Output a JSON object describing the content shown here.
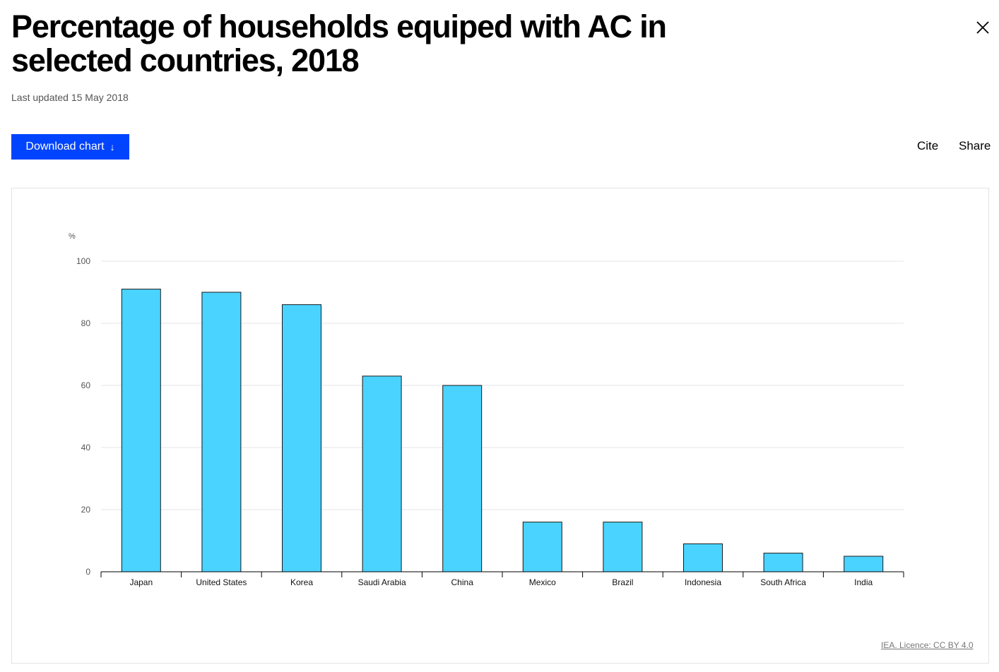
{
  "header": {
    "title": "Percentage of households equiped with AC in selected countries, 2018",
    "last_updated": "Last updated 15 May 2018",
    "close_icon": "close-icon"
  },
  "toolbar": {
    "download_label": "Download chart",
    "download_icon": "arrow-down-icon",
    "cite_label": "Cite",
    "share_label": "Share"
  },
  "colors": {
    "bar_fill": "#4ad3ff",
    "bar_stroke": "#1a1a1a",
    "accent": "#0044ff"
  },
  "chart_data": {
    "type": "bar",
    "title": "",
    "xlabel": "",
    "ylabel": "%",
    "ylim": [
      0,
      100
    ],
    "yticks": [
      0,
      20,
      40,
      60,
      80,
      100
    ],
    "grid": true,
    "categories": [
      "Japan",
      "United States",
      "Korea",
      "Saudi Arabia",
      "China",
      "Mexico",
      "Brazil",
      "Indonesia",
      "South Africa",
      "India"
    ],
    "values": [
      91,
      90,
      86,
      63,
      60,
      16,
      16,
      9,
      6,
      5
    ]
  },
  "footer": {
    "licence": "IEA. Licence: CC BY 4.0"
  }
}
